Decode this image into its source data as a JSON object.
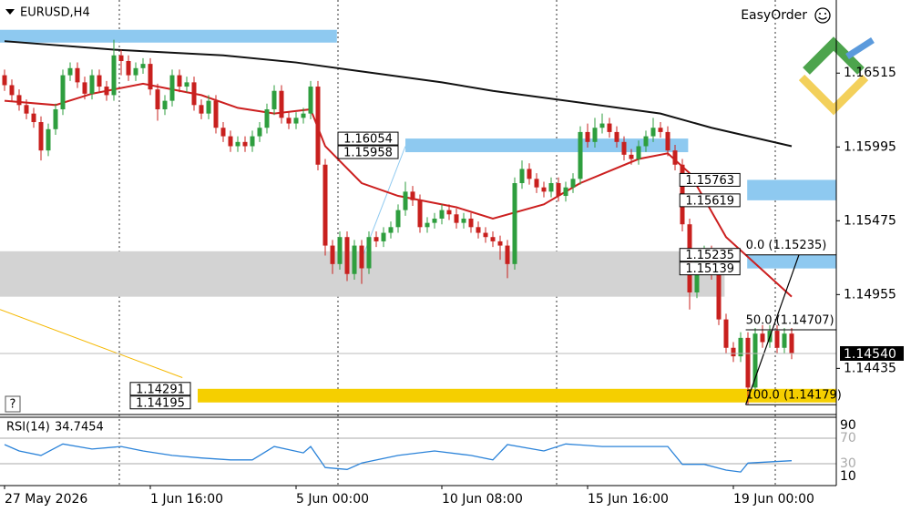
{
  "chart_data": [
    {
      "type": "candlestick",
      "title": "EURUSD,H4",
      "tool": "EasyOrder",
      "help": "?",
      "xlim": [
        -0.625,
        114.125
      ],
      "ylim": [
        1.1411,
        1.1703
      ],
      "yticks": [
        1.16515,
        1.15995,
        1.15475,
        1.14955,
        1.14435
      ],
      "xticks": [
        {
          "value": 0,
          "label": "27 May 2026"
        },
        {
          "value": 20,
          "label": "1 Jun 16:00"
        },
        {
          "value": 40,
          "label": "5 Jun 00:00"
        },
        {
          "value": 60,
          "label": "10 Jun 08:00"
        },
        {
          "value": 80,
          "label": "15 Jun 16:00"
        },
        {
          "value": 100,
          "label": "19 Jun 00:00"
        }
      ],
      "vgrid": [
        15.75,
        45.75,
        75.75,
        105.75
      ],
      "up_color": "#2e9e3e",
      "down_color": "#c8201e",
      "open": [
        1.165,
        1.1643,
        1.1636,
        1.1629,
        1.1623,
        1.1617,
        1.1597,
        1.1612,
        1.1626,
        1.165,
        1.1655,
        1.1645,
        1.1637,
        1.165,
        1.1642,
        1.1636,
        1.1664,
        1.166,
        1.165,
        1.1655,
        1.1658,
        1.164,
        1.1626,
        1.1632,
        1.165,
        1.1642,
        1.1645,
        1.1629,
        1.1623,
        1.1632,
        1.1613,
        1.1607,
        1.16,
        1.1603,
        1.16,
        1.1607,
        1.1613,
        1.1626,
        1.1639,
        1.162,
        1.1616,
        1.162,
        1.1623,
        1.1642,
        1.1587,
        1.153,
        1.1517,
        1.1536,
        1.151,
        1.153,
        1.1514,
        1.1536,
        1.1533,
        1.1539,
        1.1543,
        1.1555,
        1.1568,
        1.1562,
        1.1543,
        1.1546,
        1.1549,
        1.1555,
        1.1552,
        1.1546,
        1.1549,
        1.1543,
        1.1539,
        1.1536,
        1.1533,
        1.153,
        1.1517,
        1.1574,
        1.1584,
        1.1577,
        1.1571,
        1.1568,
        1.1574,
        1.1565,
        1.1571,
        1.1577,
        1.161,
        1.1603,
        1.1613,
        1.1616,
        1.161,
        1.1603,
        1.1594,
        1.1591,
        1.16,
        1.1607,
        1.1613,
        1.161,
        1.1597,
        1.1587,
        1.1545,
        1.1497,
        1.152,
        1.1526,
        1.151,
        1.1478,
        1.1458,
        1.1452,
        1.1465,
        1.143,
        1.1468,
        1.1462,
        1.147,
        1.1458,
        1.1468
      ],
      "high": [
        1.1654,
        1.1647,
        1.164,
        1.1633,
        1.1627,
        1.1621,
        1.1616,
        1.163,
        1.1654,
        1.1659,
        1.1659,
        1.1649,
        1.1654,
        1.1654,
        1.1646,
        1.1675,
        1.1668,
        1.1664,
        1.1659,
        1.1662,
        1.1662,
        1.1644,
        1.1636,
        1.1654,
        1.1654,
        1.1649,
        1.1649,
        1.1633,
        1.1636,
        1.1636,
        1.1617,
        1.1611,
        1.1607,
        1.1607,
        1.1611,
        1.1617,
        1.163,
        1.1643,
        1.1643,
        1.1624,
        1.1624,
        1.1627,
        1.1646,
        1.1646,
        1.1591,
        1.1534,
        1.154,
        1.154,
        1.1534,
        1.1534,
        1.154,
        1.154,
        1.1543,
        1.1547,
        1.1559,
        1.1575,
        1.1572,
        1.1566,
        1.155,
        1.1553,
        1.1559,
        1.1559,
        1.1556,
        1.1553,
        1.1553,
        1.1547,
        1.1543,
        1.154,
        1.1537,
        1.1534,
        1.1578,
        1.159,
        1.1588,
        1.1581,
        1.1575,
        1.1578,
        1.1578,
        1.1575,
        1.1581,
        1.1614,
        1.1616,
        1.162,
        1.1623,
        1.162,
        1.1614,
        1.1607,
        1.1598,
        1.1604,
        1.1611,
        1.162,
        1.1617,
        1.1614,
        1.1601,
        1.1591,
        1.1549,
        1.1528,
        1.153,
        1.153,
        1.1514,
        1.1482,
        1.1462,
        1.1469,
        1.1469,
        1.1472,
        1.1474,
        1.1474,
        1.1474,
        1.1472,
        1.1472
      ],
      "low": [
        1.1639,
        1.1632,
        1.1625,
        1.1619,
        1.1613,
        1.159,
        1.1593,
        1.1608,
        1.1622,
        1.1646,
        1.1641,
        1.1633,
        1.1633,
        1.1638,
        1.1632,
        1.1632,
        1.165,
        1.1646,
        1.1646,
        1.1651,
        1.1636,
        1.1618,
        1.1622,
        1.1628,
        1.1638,
        1.1638,
        1.1625,
        1.1619,
        1.1619,
        1.1609,
        1.1603,
        1.1596,
        1.1596,
        1.1596,
        1.1596,
        1.1603,
        1.1609,
        1.1622,
        1.1616,
        1.1612,
        1.1612,
        1.1616,
        1.1619,
        1.1583,
        1.1523,
        1.151,
        1.1513,
        1.1505,
        1.1506,
        1.1503,
        1.151,
        1.1529,
        1.1529,
        1.1535,
        1.1539,
        1.1551,
        1.1558,
        1.1539,
        1.1539,
        1.1542,
        1.1545,
        1.1548,
        1.1542,
        1.1542,
        1.1539,
        1.1535,
        1.1532,
        1.1529,
        1.152,
        1.1507,
        1.1513,
        1.157,
        1.1573,
        1.1567,
        1.1564,
        1.1564,
        1.1561,
        1.1561,
        1.1567,
        1.1573,
        1.1599,
        1.1599,
        1.1609,
        1.1606,
        1.1599,
        1.159,
        1.1587,
        1.1587,
        1.1596,
        1.1603,
        1.1606,
        1.1593,
        1.1583,
        1.154,
        1.1485,
        1.1493,
        1.1516,
        1.1506,
        1.1474,
        1.1454,
        1.1448,
        1.1448,
        1.1418,
        1.1426,
        1.1458,
        1.1458,
        1.1454,
        1.1454,
        1.145
      ],
      "close": [
        1.1643,
        1.1636,
        1.1629,
        1.1623,
        1.1617,
        1.1597,
        1.1612,
        1.1626,
        1.165,
        1.1655,
        1.1645,
        1.1637,
        1.165,
        1.1642,
        1.1636,
        1.1664,
        1.166,
        1.165,
        1.1655,
        1.1658,
        1.164,
        1.1626,
        1.1632,
        1.165,
        1.1642,
        1.1645,
        1.1629,
        1.1623,
        1.1632,
        1.1613,
        1.1607,
        1.16,
        1.1603,
        1.16,
        1.1607,
        1.1613,
        1.1626,
        1.1639,
        1.162,
        1.1616,
        1.162,
        1.1623,
        1.1642,
        1.1587,
        1.153,
        1.1517,
        1.1536,
        1.151,
        1.153,
        1.1514,
        1.1536,
        1.1533,
        1.1539,
        1.1543,
        1.1555,
        1.1568,
        1.1562,
        1.1543,
        1.1546,
        1.1549,
        1.1555,
        1.1552,
        1.1546,
        1.1549,
        1.1543,
        1.1539,
        1.1536,
        1.1533,
        1.153,
        1.1517,
        1.1574,
        1.1584,
        1.1577,
        1.1571,
        1.1568,
        1.1574,
        1.1565,
        1.1571,
        1.1577,
        1.161,
        1.1603,
        1.1613,
        1.1616,
        1.161,
        1.1603,
        1.1594,
        1.1591,
        1.16,
        1.1607,
        1.1613,
        1.161,
        1.1597,
        1.1587,
        1.1545,
        1.1497,
        1.152,
        1.1526,
        1.151,
        1.1478,
        1.1458,
        1.1452,
        1.1465,
        1.143,
        1.1468,
        1.1462,
        1.147,
        1.1458,
        1.1468,
        1.1454
      ],
      "series": [
        {
          "color": "#111111",
          "x": [
            0,
            15,
            30,
            40,
            50,
            60,
            67,
            80,
            90,
            97,
            108
          ],
          "values": [
            1.1674,
            1.1668,
            1.1664,
            1.1659,
            1.1652,
            1.1645,
            1.1639,
            1.163,
            1.1623,
            1.1613,
            1.16
          ]
        },
        {
          "color": "#cc1f1f",
          "x": [
            0,
            7,
            12,
            19,
            27,
            32,
            37,
            42,
            44,
            49,
            54,
            62,
            67,
            74,
            79,
            87,
            91,
            94,
            99,
            108
          ],
          "values": [
            1.1632,
            1.1629,
            1.1637,
            1.1644,
            1.1636,
            1.1627,
            1.1623,
            1.1626,
            1.16,
            1.1574,
            1.1565,
            1.1557,
            1.1549,
            1.1559,
            1.1574,
            1.1591,
            1.1595,
            1.1581,
            1.1536,
            1.1494
          ]
        }
      ],
      "zones": [
        {
          "top": 1.1682,
          "bottom": 1.1673,
          "from": -0.625,
          "to": 45.6,
          "color": "#8ec9f0",
          "labeled": false
        },
        {
          "top": 1.1526,
          "bottom": 1.1494,
          "from": -0.625,
          "to": 98.8,
          "color": "#d3d3d3",
          "labeled": false
        },
        {
          "top": 1.16054,
          "bottom": 1.15958,
          "from": 55,
          "to": 93.8,
          "color": "#8ec9f0",
          "labeled": true
        },
        {
          "top": 1.15763,
          "bottom": 1.15619,
          "from": 101.9,
          "to": 114.125,
          "color": "#8ec9f0",
          "labeled": true
        },
        {
          "top": 1.15235,
          "bottom": 1.15139,
          "from": 101.9,
          "to": 114.125,
          "color": "#8ec9f0",
          "labeled": true
        },
        {
          "top": 1.14291,
          "bottom": 1.14195,
          "from": 26.5,
          "to": 114.125,
          "color": "#f5cf00",
          "labeled": true
        }
      ],
      "lines": [
        {
          "x": [
            -0.625,
            24.4
          ],
          "values": [
            1.1485,
            1.1437
          ],
          "color": "#f5b800"
        },
        {
          "x": [
            48.75,
            55
          ],
          "values": [
            1.1517,
            1.16
          ],
          "color": "#8ec9f0"
        }
      ],
      "fib": {
        "x": [
          101.7,
          109
        ],
        "levels": [
          {
            "value": 1.15235,
            "label": "0.0 (1.15235)"
          },
          {
            "value": 1.14707,
            "label": "50.0 (1.14707)"
          },
          {
            "value": 1.14179,
            "label": "100.0 (1.14179)"
          }
        ]
      },
      "last_price": {
        "value": 1.1454,
        "label": "1.14540"
      }
    },
    {
      "type": "line",
      "name": "RSI(14)",
      "color": "#2b83d9",
      "xlim": [
        -0.625,
        114.125
      ],
      "ylim": [
        0,
        100
      ],
      "yticks": [
        90,
        70,
        30,
        10
      ],
      "x": [
        0,
        2,
        5,
        8,
        12,
        16,
        19,
        23,
        27,
        31,
        34,
        37,
        41,
        42,
        44,
        47,
        49,
        54,
        59,
        64,
        67,
        69,
        74,
        77,
        82,
        87,
        91,
        93,
        96,
        99,
        101,
        102,
        108
      ],
      "values": [
        60,
        50,
        43,
        61,
        53,
        57,
        50,
        43,
        39,
        36,
        36,
        57,
        47,
        57,
        24,
        21,
        31,
        43,
        50,
        43,
        36,
        60,
        50,
        61,
        57,
        57,
        57,
        29,
        29,
        20,
        17,
        31,
        34.7454
      ]
    }
  ]
}
